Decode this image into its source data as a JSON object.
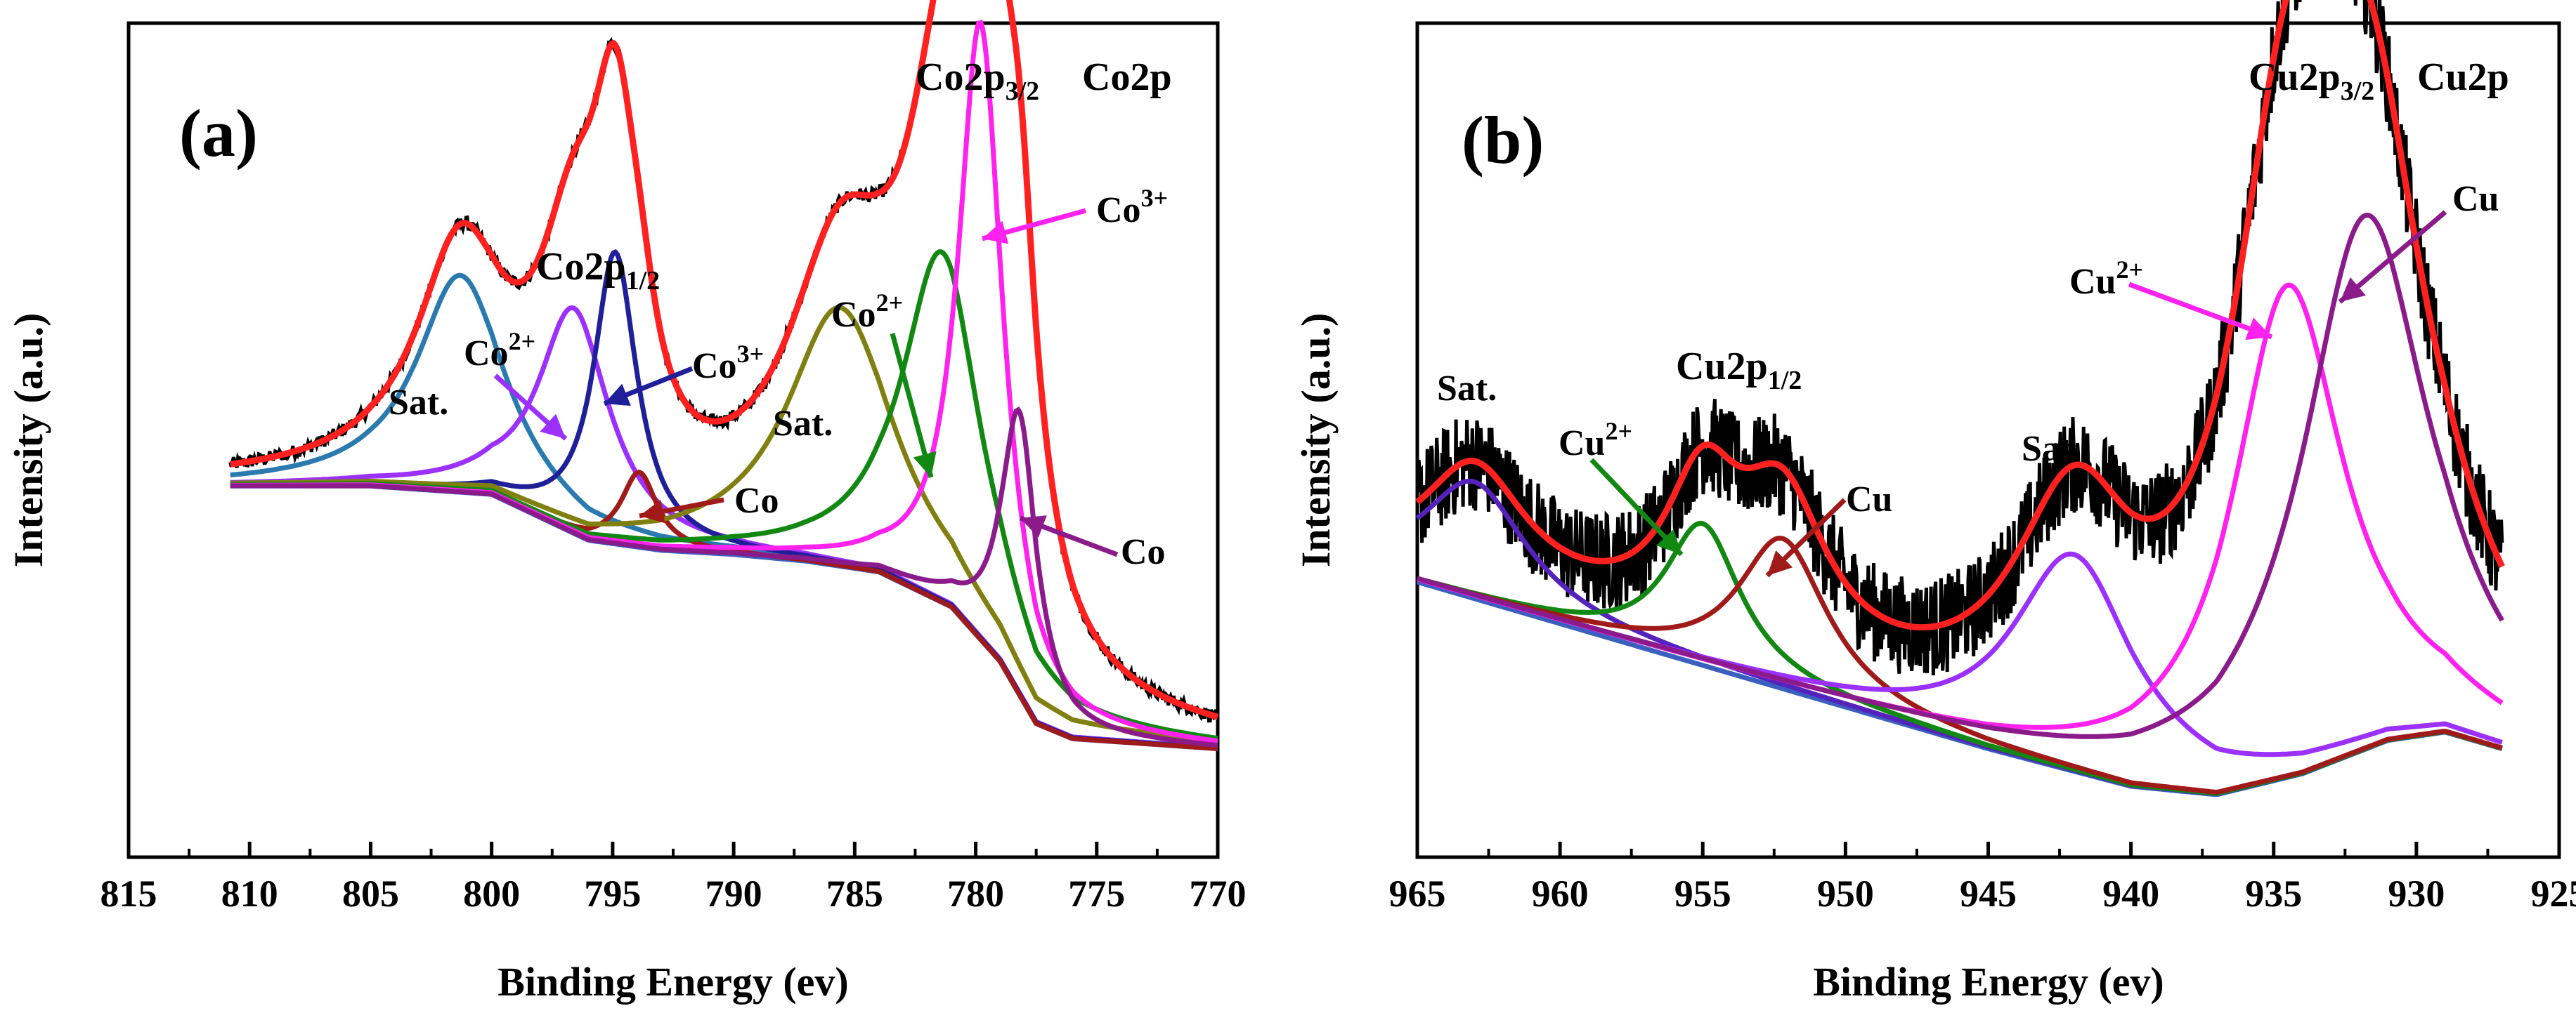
{
  "chart_data": [
    {
      "type": "line",
      "panel_label": "(a)",
      "title": "Co2p",
      "xlabel": "Binding Energy (ev)",
      "ylabel": "Intensity (a.u.)",
      "xlim": [
        815,
        770
      ],
      "ylim": [
        0,
        100
      ],
      "x_ticks": [
        815,
        810,
        805,
        800,
        795,
        790,
        785,
        780,
        775,
        770
      ],
      "x_tick_labels": [
        "815",
        "810",
        "805",
        "800",
        "795",
        "790",
        "785",
        "780",
        "775",
        "770"
      ],
      "background": {
        "x": [
          810,
          805,
          800,
          796,
          793,
          790,
          787,
          784,
          781,
          779,
          777.5,
          776,
          770
        ],
        "y": [
          44.5,
          44.5,
          43.5,
          38,
          36.8,
          36.3,
          35.5,
          34.2,
          30,
          23.5,
          16,
          14.2,
          13
        ]
      },
      "series": [
        {
          "name": "Sat.",
          "color": "#2a7ab0",
          "center": 801.3,
          "height": 26,
          "width": 2.2
        },
        {
          "name": "Co2+ (2p1/2)",
          "color": "#9b30ff",
          "center": 796.6,
          "height": 27,
          "width": 1.8
        },
        {
          "name": "Co3+ (2p1/2)",
          "color": "#1f1f99",
          "center": 794.9,
          "height": 35,
          "width": 1.1
        },
        {
          "name": "Co (2p1/2)",
          "color": "#a01a1a",
          "center": 793.9,
          "height": 9,
          "width": 0.9
        },
        {
          "name": "Sat.",
          "color": "#808010",
          "center": 785.6,
          "height": 31,
          "width": 2.7
        },
        {
          "name": "Co2+ (2p3/2)",
          "color": "#118811",
          "center": 781.4,
          "height": 42,
          "width": 2.0
        },
        {
          "name": "Co3+ (2p3/2)",
          "color": "#ff22ee",
          "center": 779.8,
          "height": 74,
          "width": 1.1
        },
        {
          "name": "Co (2p3/2)",
          "color": "#8b1a8b",
          "center": 778.2,
          "height": 34,
          "width": 0.9
        }
      ],
      "envelope_color": "#ff2020",
      "raw_color": "#000000",
      "annotations": [
        {
          "text": "Co2p"
        },
        {
          "text": "Co2p",
          "sub": "3/2"
        },
        {
          "text": "Co",
          "sup": "3+"
        },
        {
          "text": "Co2p",
          "sub": "1/2"
        },
        {
          "text": "Sat."
        },
        {
          "text": "Co",
          "sup": "2+"
        },
        {
          "text": "Co",
          "sup": "3+"
        },
        {
          "text": "Co"
        },
        {
          "text": "Sat."
        },
        {
          "text": "Co",
          "sup": "2+"
        },
        {
          "text": "Co"
        }
      ]
    },
    {
      "type": "line",
      "panel_label": "(b)",
      "title": "Cu2p",
      "xlabel": "Binding Energy (ev)",
      "ylabel": "Intensity (a.u.)",
      "xlim": [
        965,
        925
      ],
      "ylim": [
        0,
        100
      ],
      "x_ticks": [
        965,
        960,
        955,
        950,
        945,
        940,
        935,
        930,
        925
      ],
      "x_tick_labels": [
        "965",
        "960",
        "955",
        "950",
        "945",
        "940",
        "935",
        "930",
        "925"
      ],
      "data_range": [
        965,
        927
      ],
      "background": {
        "x": [
          965,
          960,
          955,
          950,
          945,
          940,
          937,
          934,
          931,
          929,
          927
        ],
        "y": [
          33,
          28,
          23,
          18,
          13,
          8.5,
          7.5,
          10,
          14,
          15,
          13
        ]
      },
      "series": [
        {
          "name": "Sat.",
          "color": "#5522bb",
          "center": 963,
          "height": 14,
          "width": 2.2
        },
        {
          "name": "Cu2+ (2p1/2)",
          "color": "#118811",
          "center": 955,
          "height": 17,
          "width": 1.6
        },
        {
          "name": "Cu (2p1/2)",
          "color": "#a01a1a",
          "center": 952.2,
          "height": 18,
          "width": 1.9
        },
        {
          "name": "Sat.",
          "color": "#9b30ff",
          "center": 942,
          "height": 26,
          "width": 2.6
        },
        {
          "name": "Cu2+ (2p3/2)",
          "color": "#ff22ee",
          "center": 934.5,
          "height": 59,
          "width": 2.4
        },
        {
          "name": "Cu (2p3/2)",
          "color": "#8b1a8b",
          "center": 931.8,
          "height": 64,
          "width": 2.7
        }
      ],
      "envelope_color": "#ff2020",
      "raw_color": "#000000",
      "annotations": [
        {
          "text": "Cu2p"
        },
        {
          "text": "Cu2p",
          "sub": "3/2"
        },
        {
          "text": "Cu"
        },
        {
          "text": "Cu",
          "sup": "2+"
        },
        {
          "text": "Cu2p",
          "sub": "1/2"
        },
        {
          "text": "Sat."
        },
        {
          "text": "Cu",
          "sup": "2+"
        },
        {
          "text": "Cu"
        },
        {
          "text": "Sat."
        }
      ]
    }
  ]
}
